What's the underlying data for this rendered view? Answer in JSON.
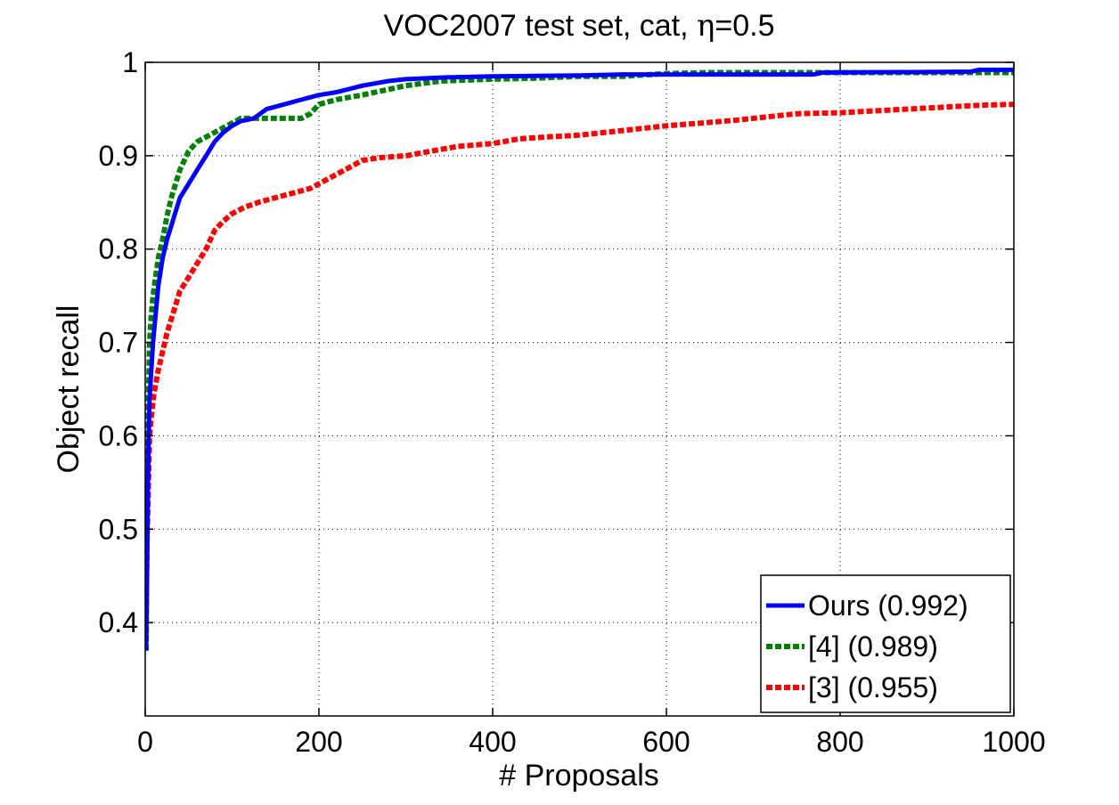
{
  "chart_data": {
    "type": "line",
    "title_prefix": "VOC2007 test set, cat, ",
    "title_symbol": "η",
    "title_suffix": "=0.5",
    "xlabel": "# Proposals",
    "ylabel": "Object recall",
    "xlim": [
      0,
      1000
    ],
    "ylim": [
      0.3,
      1.0
    ],
    "xticks": [
      0,
      200,
      400,
      600,
      800,
      1000
    ],
    "xtick_labels": [
      "0",
      "200",
      "400",
      "600",
      "800",
      "1000"
    ],
    "yticks": [
      0.4,
      0.5,
      0.6,
      0.7,
      0.8,
      0.9,
      1.0
    ],
    "ytick_labels": [
      "0.4",
      "0.5",
      "0.6",
      "0.7",
      "0.8",
      "0.9",
      "1"
    ],
    "grid": true,
    "legend_position": "bottom-right",
    "series": [
      {
        "name": "Ours (0.992)",
        "color": "#0000ff",
        "style": "solid",
        "points": [
          [
            1,
            0.37
          ],
          [
            2,
            0.44
          ],
          [
            3,
            0.54
          ],
          [
            4,
            0.6
          ],
          [
            5,
            0.64
          ],
          [
            7,
            0.67
          ],
          [
            9,
            0.7
          ],
          [
            12,
            0.73
          ],
          [
            15,
            0.76
          ],
          [
            20,
            0.79
          ],
          [
            25,
            0.81
          ],
          [
            30,
            0.825
          ],
          [
            35,
            0.84
          ],
          [
            40,
            0.855
          ],
          [
            50,
            0.87
          ],
          [
            60,
            0.885
          ],
          [
            70,
            0.9
          ],
          [
            80,
            0.915
          ],
          [
            90,
            0.925
          ],
          [
            100,
            0.932
          ],
          [
            110,
            0.937
          ],
          [
            125,
            0.94
          ],
          [
            140,
            0.95
          ],
          [
            160,
            0.955
          ],
          [
            180,
            0.96
          ],
          [
            200,
            0.965
          ],
          [
            220,
            0.968
          ],
          [
            250,
            0.975
          ],
          [
            280,
            0.98
          ],
          [
            300,
            0.982
          ],
          [
            350,
            0.984
          ],
          [
            400,
            0.985
          ],
          [
            500,
            0.986
          ],
          [
            550,
            0.987
          ],
          [
            600,
            0.987
          ],
          [
            700,
            0.987
          ],
          [
            770,
            0.987
          ],
          [
            780,
            0.989
          ],
          [
            950,
            0.99
          ],
          [
            960,
            0.992
          ],
          [
            1000,
            0.992
          ]
        ]
      },
      {
        "name": "[4] (0.989)",
        "color": "#008000",
        "style": "dashed",
        "points": [
          [
            1,
            0.37
          ],
          [
            2,
            0.5
          ],
          [
            3,
            0.6
          ],
          [
            4,
            0.65
          ],
          [
            5,
            0.7
          ],
          [
            7,
            0.73
          ],
          [
            9,
            0.75
          ],
          [
            12,
            0.77
          ],
          [
            15,
            0.79
          ],
          [
            20,
            0.81
          ],
          [
            25,
            0.835
          ],
          [
            30,
            0.855
          ],
          [
            35,
            0.87
          ],
          [
            40,
            0.885
          ],
          [
            45,
            0.895
          ],
          [
            50,
            0.905
          ],
          [
            60,
            0.915
          ],
          [
            70,
            0.92
          ],
          [
            80,
            0.925
          ],
          [
            90,
            0.93
          ],
          [
            100,
            0.935
          ],
          [
            110,
            0.94
          ],
          [
            120,
            0.94
          ],
          [
            130,
            0.94
          ],
          [
            150,
            0.94
          ],
          [
            180,
            0.94
          ],
          [
            190,
            0.945
          ],
          [
            200,
            0.955
          ],
          [
            220,
            0.96
          ],
          [
            250,
            0.965
          ],
          [
            300,
            0.975
          ],
          [
            340,
            0.98
          ],
          [
            400,
            0.982
          ],
          [
            450,
            0.983
          ],
          [
            500,
            0.985
          ],
          [
            550,
            0.985
          ],
          [
            600,
            0.988
          ],
          [
            650,
            0.989
          ],
          [
            800,
            0.989
          ],
          [
            1000,
            0.989
          ]
        ]
      },
      {
        "name": "[3] (0.955)",
        "color": "#ff0000",
        "style": "dashed",
        "points": [
          [
            1,
            0.4
          ],
          [
            2,
            0.48
          ],
          [
            3,
            0.52
          ],
          [
            4,
            0.56
          ],
          [
            5,
            0.6
          ],
          [
            7,
            0.62
          ],
          [
            10,
            0.645
          ],
          [
            15,
            0.67
          ],
          [
            20,
            0.69
          ],
          [
            25,
            0.71
          ],
          [
            30,
            0.725
          ],
          [
            35,
            0.74
          ],
          [
            40,
            0.755
          ],
          [
            50,
            0.77
          ],
          [
            60,
            0.785
          ],
          [
            70,
            0.8
          ],
          [
            80,
            0.82
          ],
          [
            90,
            0.83
          ],
          [
            100,
            0.838
          ],
          [
            115,
            0.845
          ],
          [
            130,
            0.85
          ],
          [
            150,
            0.855
          ],
          [
            170,
            0.86
          ],
          [
            190,
            0.865
          ],
          [
            210,
            0.875
          ],
          [
            230,
            0.885
          ],
          [
            250,
            0.895
          ],
          [
            270,
            0.898
          ],
          [
            300,
            0.9
          ],
          [
            330,
            0.905
          ],
          [
            360,
            0.91
          ],
          [
            400,
            0.913
          ],
          [
            430,
            0.918
          ],
          [
            460,
            0.92
          ],
          [
            500,
            0.922
          ],
          [
            530,
            0.925
          ],
          [
            560,
            0.928
          ],
          [
            600,
            0.932
          ],
          [
            640,
            0.935
          ],
          [
            680,
            0.938
          ],
          [
            720,
            0.942
          ],
          [
            750,
            0.945
          ],
          [
            800,
            0.946
          ],
          [
            840,
            0.948
          ],
          [
            880,
            0.95
          ],
          [
            920,
            0.952
          ],
          [
            960,
            0.954
          ],
          [
            1000,
            0.955
          ]
        ]
      }
    ]
  }
}
